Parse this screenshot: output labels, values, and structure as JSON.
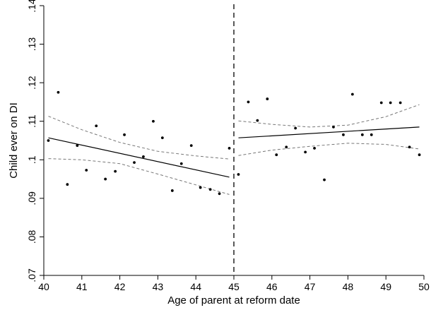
{
  "chart_data": {
    "type": "scatter",
    "title": "",
    "xlabel": "Age of parent at reform date",
    "ylabel": "Child ever on DI",
    "xlim": [
      40,
      50
    ],
    "ylim": [
      0.07,
      0.14
    ],
    "x_ticks": [
      40,
      41,
      42,
      43,
      44,
      45,
      46,
      47,
      48,
      49,
      50
    ],
    "x_tick_labels": [
      "40",
      "41",
      "42",
      "43",
      "44",
      "45",
      "46",
      "47",
      "48",
      "49",
      "50"
    ],
    "y_ticks": [
      0.07,
      0.08,
      0.09,
      0.1,
      0.11,
      0.12,
      0.13,
      0.14
    ],
    "y_tick_labels": [
      ".07",
      ".08",
      ".09",
      ".1",
      ".11",
      ".12",
      ".13",
      ".14"
    ],
    "cutoff_x": 45,
    "grid": false,
    "points": [
      {
        "x": 40.12,
        "y": 0.105
      },
      {
        "x": 40.38,
        "y": 0.1175
      },
      {
        "x": 40.62,
        "y": 0.0936
      },
      {
        "x": 40.88,
        "y": 0.1037
      },
      {
        "x": 41.12,
        "y": 0.0973
      },
      {
        "x": 41.38,
        "y": 0.1088
      },
      {
        "x": 41.62,
        "y": 0.095
      },
      {
        "x": 41.88,
        "y": 0.097
      },
      {
        "x": 42.12,
        "y": 0.1065
      },
      {
        "x": 42.38,
        "y": 0.0993
      },
      {
        "x": 42.62,
        "y": 0.1008
      },
      {
        "x": 42.88,
        "y": 0.11
      },
      {
        "x": 43.12,
        "y": 0.1057
      },
      {
        "x": 43.38,
        "y": 0.092
      },
      {
        "x": 43.62,
        "y": 0.099
      },
      {
        "x": 43.88,
        "y": 0.1037
      },
      {
        "x": 44.12,
        "y": 0.0928
      },
      {
        "x": 44.38,
        "y": 0.0923
      },
      {
        "x": 44.62,
        "y": 0.0912
      },
      {
        "x": 44.88,
        "y": 0.103
      },
      {
        "x": 45.12,
        "y": 0.0962
      },
      {
        "x": 45.38,
        "y": 0.115
      },
      {
        "x": 45.62,
        "y": 0.1102
      },
      {
        "x": 45.88,
        "y": 0.1158
      },
      {
        "x": 46.12,
        "y": 0.1013
      },
      {
        "x": 46.38,
        "y": 0.1033
      },
      {
        "x": 46.62,
        "y": 0.1082
      },
      {
        "x": 46.88,
        "y": 0.102
      },
      {
        "x": 47.12,
        "y": 0.103
      },
      {
        "x": 47.38,
        "y": 0.0948
      },
      {
        "x": 47.62,
        "y": 0.1085
      },
      {
        "x": 47.88,
        "y": 0.1065
      },
      {
        "x": 48.12,
        "y": 0.117
      },
      {
        "x": 48.38,
        "y": 0.1065
      },
      {
        "x": 48.62,
        "y": 0.1065
      },
      {
        "x": 48.88,
        "y": 0.1148
      },
      {
        "x": 49.12,
        "y": 0.1148
      },
      {
        "x": 49.38,
        "y": 0.1148
      },
      {
        "x": 49.62,
        "y": 0.1033
      },
      {
        "x": 49.88,
        "y": 0.1013
      }
    ],
    "fit_lines": [
      {
        "x": [
          40.12,
          44.88
        ],
        "y": [
          0.1057,
          0.0955
        ]
      },
      {
        "x": [
          45.12,
          49.88
        ],
        "y": [
          0.1057,
          0.1085
        ]
      }
    ],
    "ci_bands": [
      {
        "x": [
          40.12,
          41.0,
          42.0,
          43.0,
          44.0,
          44.88
        ],
        "upper": [
          0.1113,
          0.1078,
          0.1045,
          0.1022,
          0.101,
          0.1002
        ],
        "lower": [
          0.1003,
          0.1,
          0.099,
          0.0963,
          0.0935,
          0.091
        ]
      },
      {
        "x": [
          45.12,
          46.0,
          47.0,
          48.0,
          49.0,
          49.88
        ],
        "upper": [
          0.1101,
          0.1092,
          0.1085,
          0.109,
          0.1112,
          0.1143
        ],
        "lower": [
          0.1011,
          0.1025,
          0.1035,
          0.1043,
          0.104,
          0.1028
        ]
      }
    ]
  }
}
